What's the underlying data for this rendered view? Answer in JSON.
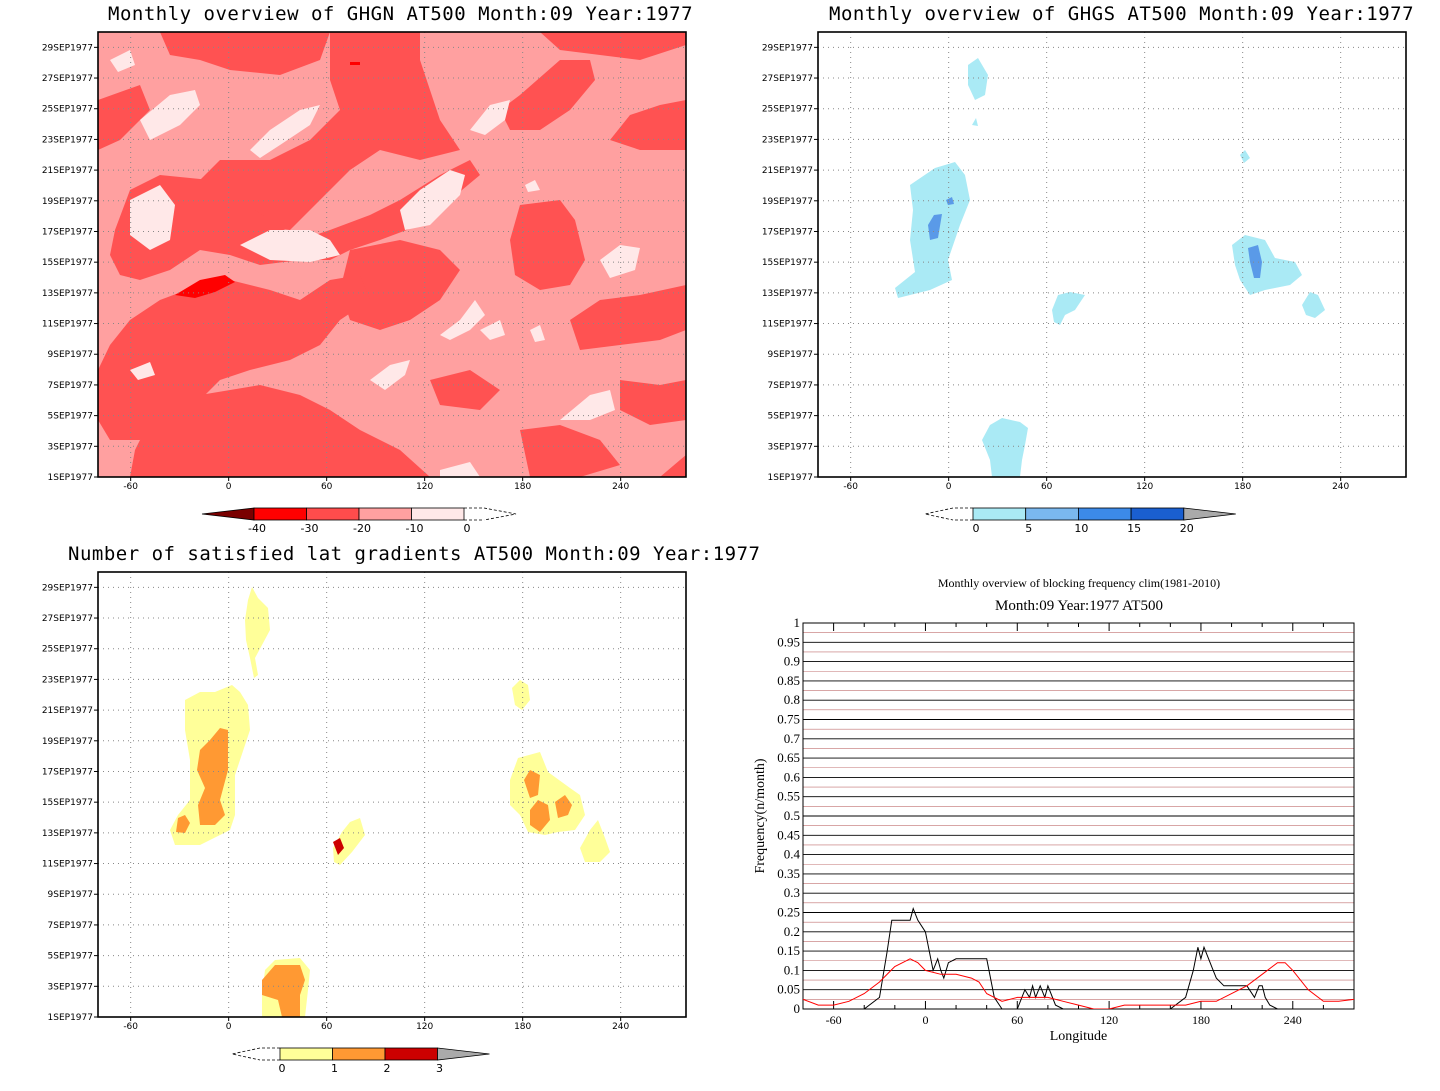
{
  "panels": {
    "ghgn": {
      "title": "Monthly overview of GHGN AT500 Month:09 Year:1977",
      "y_labels": [
        "1SEP1977",
        "3SEP1977",
        "5SEP1977",
        "7SEP1977",
        "9SEP1977",
        "11SEP1977",
        "13SEP1977",
        "15SEP1977",
        "17SEP1977",
        "19SEP1977",
        "21SEP1977",
        "23SEP1977",
        "25SEP1977",
        "27SEP1977",
        "29SEP1977"
      ],
      "x_labels": [
        "-60",
        "0",
        "60",
        "120",
        "180",
        "240"
      ],
      "colorbar": {
        "labels": [
          "-40",
          "-30",
          "-20",
          "-10",
          "0"
        ],
        "colors": [
          "#7a0000",
          "#ff0000",
          "#ff4c4c",
          "#ffa0a0",
          "#ffe8e8"
        ]
      },
      "colors": {
        "background": "#ffa0a0",
        "level1": "#ff5252",
        "level2": "#ff0000",
        "light": "#ffe8e8"
      }
    },
    "ghgs": {
      "title": "Monthly overview of GHGS AT500 Month:09 Year:1977",
      "y_labels": [
        "1SEP1977",
        "3SEP1977",
        "5SEP1977",
        "7SEP1977",
        "9SEP1977",
        "11SEP1977",
        "13SEP1977",
        "15SEP1977",
        "17SEP1977",
        "19SEP1977",
        "21SEP1977",
        "23SEP1977",
        "25SEP1977",
        "27SEP1977",
        "29SEP1977"
      ],
      "x_labels": [
        "-60",
        "0",
        "60",
        "120",
        "180",
        "240"
      ],
      "colorbar": {
        "labels": [
          "0",
          "5",
          "10",
          "15",
          "20"
        ],
        "colors": [
          "#aaeaf5",
          "#7ab8ef",
          "#3c8ae8",
          "#1a5fd0",
          "#aaaaaa"
        ]
      },
      "colors": {
        "level1": "#aaeaf5",
        "level2": "#5a9ae8"
      }
    },
    "grad": {
      "title": "Number of satisfied lat gradients AT500 Month:09 Year:1977",
      "y_labels": [
        "1SEP1977",
        "3SEP1977",
        "5SEP1977",
        "7SEP1977",
        "9SEP1977",
        "11SEP1977",
        "13SEP1977",
        "15SEP1977",
        "17SEP1977",
        "19SEP1977",
        "21SEP1977",
        "23SEP1977",
        "25SEP1977",
        "27SEP1977",
        "29SEP1977"
      ],
      "x_labels": [
        "-60",
        "0",
        "60",
        "120",
        "180",
        "240"
      ],
      "colorbar": {
        "labels": [
          "0",
          "1",
          "2",
          "3"
        ],
        "colors": [
          "#ffff99",
          "#ff9933",
          "#cc0000",
          "#aaaaaa"
        ]
      },
      "colors": {
        "level1": "#ffff99",
        "level2": "#ff9933",
        "level3": "#cc0000"
      }
    },
    "freq": {
      "title": "Monthly overview of blocking frequency clim(1981-2010)",
      "subtitle": "Month:09 Year:1977  AT500",
      "ylabel": "Frequency(n/month)",
      "xlabel": "Longitude"
    }
  },
  "chart_data": [
    {
      "type": "heatmap",
      "title": "Monthly overview of GHGN AT500 Month:09 Year:1977",
      "x_range": [
        -80,
        280
      ],
      "y_range": [
        "1SEP1977",
        "30SEP1977"
      ],
      "levels": [
        -40,
        -30,
        -20,
        -10,
        0
      ]
    },
    {
      "type": "heatmap",
      "title": "Monthly overview of GHGS AT500 Month:09 Year:1977",
      "x_range": [
        -80,
        280
      ],
      "y_range": [
        "1SEP1977",
        "30SEP1977"
      ],
      "levels": [
        0,
        5,
        10,
        15,
        20
      ]
    },
    {
      "type": "heatmap",
      "title": "Number of satisfied lat gradients AT500 Month:09 Year:1977",
      "x_range": [
        -80,
        280
      ],
      "y_range": [
        "1SEP1977",
        "30SEP1977"
      ],
      "levels": [
        0,
        1,
        2,
        3
      ]
    },
    {
      "type": "line",
      "title": "Monthly overview of blocking frequency clim(1981-2010)",
      "subtitle": "Month:09 Year:1977  AT500",
      "xlabel": "Longitude",
      "ylabel": "Frequency(n/month)",
      "xlim": [
        -80,
        280
      ],
      "ylim": [
        0,
        1
      ],
      "x_ticks": [
        -60,
        0,
        60,
        120,
        180,
        240
      ],
      "y_ticks": [
        "0",
        "0.05",
        "0.1",
        "0.15",
        "0.2",
        "0.25",
        "0.3",
        "0.35",
        "0.4",
        "0.45",
        "0.5",
        "0.55",
        "0.6",
        "0.65",
        "0.7",
        "0.75",
        "0.8",
        "0.85",
        "0.9",
        "0.95",
        "1"
      ],
      "grid": true,
      "series": [
        {
          "color": "#000000",
          "x": [
            -80,
            -40,
            -30,
            -25,
            -22,
            -10,
            -8,
            -5,
            0,
            5,
            8,
            10,
            12,
            15,
            20,
            25,
            30,
            40,
            45,
            50,
            55,
            60,
            65,
            68,
            70,
            72,
            75,
            78,
            80,
            85,
            90,
            100,
            110,
            120,
            130,
            140,
            150,
            160,
            170,
            175,
            178,
            180,
            182,
            185,
            188,
            190,
            195,
            200,
            210,
            215,
            218,
            220,
            222,
            225,
            230,
            240,
            260,
            280
          ],
          "y": [
            0,
            0,
            0.03,
            0.15,
            0.23,
            0.23,
            0.26,
            0.23,
            0.2,
            0.1,
            0.13,
            0.1,
            0.08,
            0.12,
            0.13,
            0.13,
            0.13,
            0.13,
            0.03,
            0,
            0,
            0,
            0.05,
            0.03,
            0.06,
            0.03,
            0.06,
            0.03,
            0.06,
            0.01,
            0,
            0,
            0,
            0,
            0,
            0,
            0,
            0,
            0.03,
            0.1,
            0.16,
            0.13,
            0.16,
            0.13,
            0.1,
            0.08,
            0.06,
            0.06,
            0.06,
            0.03,
            0.06,
            0.06,
            0.03,
            0.01,
            0,
            0,
            0,
            0
          ]
        },
        {
          "color": "#ff0000",
          "x": [
            -80,
            -70,
            -60,
            -50,
            -40,
            -30,
            -20,
            -15,
            -10,
            -5,
            0,
            10,
            20,
            30,
            35,
            40,
            50,
            60,
            70,
            80,
            90,
            100,
            110,
            120,
            130,
            140,
            150,
            160,
            170,
            180,
            190,
            200,
            210,
            220,
            230,
            235,
            240,
            250,
            260,
            270,
            280
          ],
          "y": [
            0.025,
            0.01,
            0.01,
            0.02,
            0.04,
            0.07,
            0.11,
            0.12,
            0.13,
            0.12,
            0.1,
            0.09,
            0.09,
            0.08,
            0.07,
            0.04,
            0.02,
            0.03,
            0.03,
            0.03,
            0.02,
            0.01,
            0,
            0,
            0.01,
            0.01,
            0.01,
            0.01,
            0.01,
            0.02,
            0.02,
            0.04,
            0.06,
            0.09,
            0.12,
            0.12,
            0.1,
            0.05,
            0.02,
            0.02,
            0.025
          ]
        }
      ]
    }
  ]
}
